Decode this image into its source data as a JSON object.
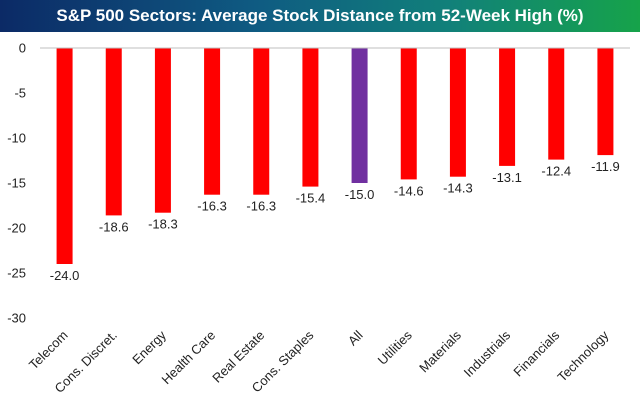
{
  "title": "S&P 500 Sectors: Average Stock Distance from 52-Week High (%)",
  "colors": {
    "bar": "#ff0000",
    "highlight_bar": "#7030a0"
  },
  "chart_data": {
    "type": "bar",
    "title": "S&P 500 Sectors: Average Stock Distance from 52-Week High (%)",
    "categories": [
      "Telecom",
      "Cons. Discret.",
      "Energy",
      "Health Care",
      "Real Estate",
      "Cons. Staples",
      "All",
      "Utilities",
      "Materials",
      "Industrials",
      "Financials",
      "Technology"
    ],
    "values": [
      -24.0,
      -18.6,
      -18.3,
      -16.3,
      -16.3,
      -15.4,
      -15.0,
      -14.6,
      -14.3,
      -13.1,
      -12.4,
      -11.9
    ],
    "value_labels": [
      "-24.0",
      "-18.6",
      "-18.3",
      "-16.3",
      "-16.3",
      "-15.4",
      "-15.0",
      "-14.6",
      "-14.3",
      "-13.1",
      "-12.4",
      "-11.9"
    ],
    "highlight_category": "All",
    "ylim": [
      -30,
      0
    ],
    "yticks": [
      0,
      -5,
      -10,
      -15,
      -20,
      -25,
      -30
    ],
    "ytick_labels": [
      "0",
      "-5",
      "-10",
      "-15",
      "-20",
      "-25",
      "-30"
    ],
    "grid": false,
    "xlabel": "",
    "ylabel": ""
  }
}
